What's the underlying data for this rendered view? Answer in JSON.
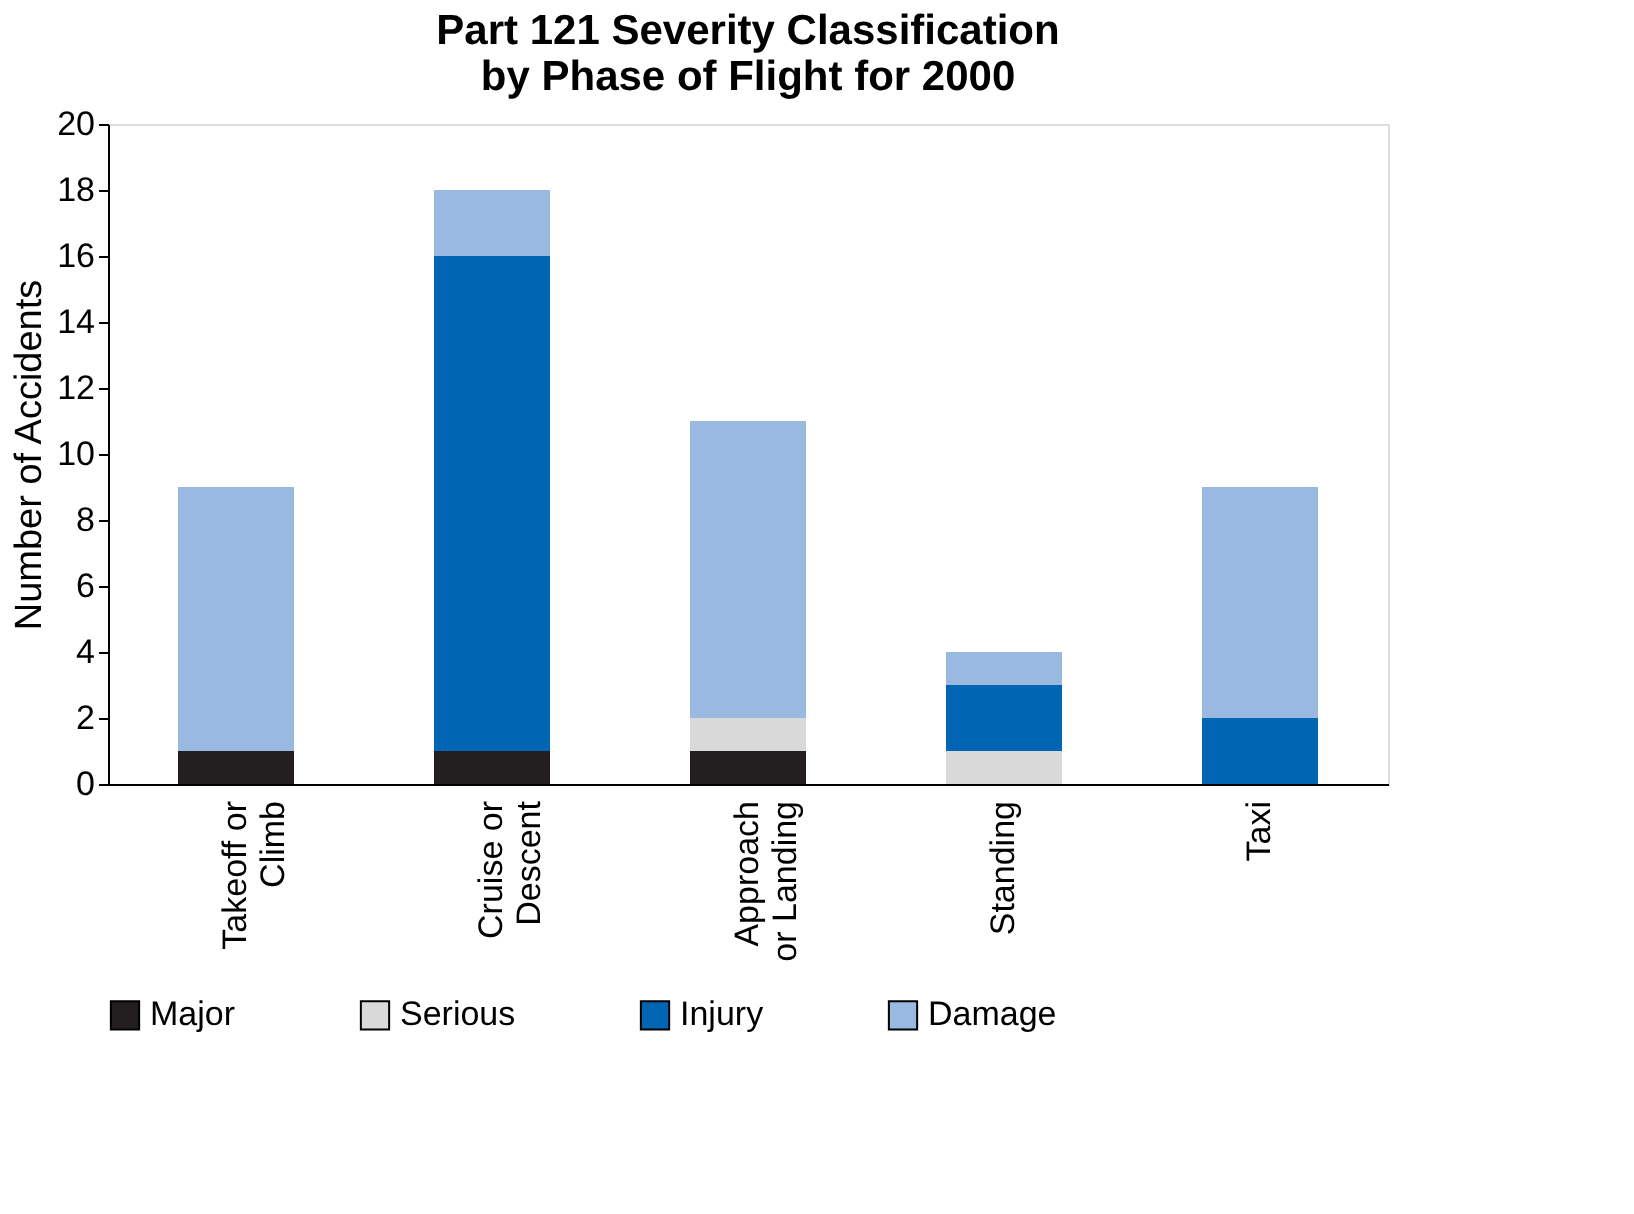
{
  "chart_data": {
    "type": "bar",
    "stacked": true,
    "title": "Part 121 Severity Classification\nby Phase of Flight for 2000",
    "ylabel": "Number of Accidents",
    "categories": [
      "Takeoff or\nClimb",
      "Cruise or\nDescent",
      "Approach\nor Landing",
      "Standing",
      "Taxi"
    ],
    "series": [
      {
        "name": "Major",
        "color": "#231f20",
        "values": [
          1,
          1,
          1,
          0,
          0
        ]
      },
      {
        "name": "Serious",
        "color": "#d9d9d9",
        "values": [
          0,
          0,
          1,
          1,
          0
        ]
      },
      {
        "name": "Injury",
        "color": "#0066b3",
        "values": [
          0,
          15,
          0,
          2,
          2
        ]
      },
      {
        "name": "Damage",
        "color": "#99b9e0",
        "values": [
          8,
          2,
          9,
          1,
          7
        ]
      }
    ],
    "ylim": [
      0,
      20
    ],
    "yticks": [
      0,
      2,
      4,
      6,
      8,
      10,
      12,
      14,
      16,
      18,
      20
    ],
    "grid": false,
    "legend": "bottom"
  }
}
